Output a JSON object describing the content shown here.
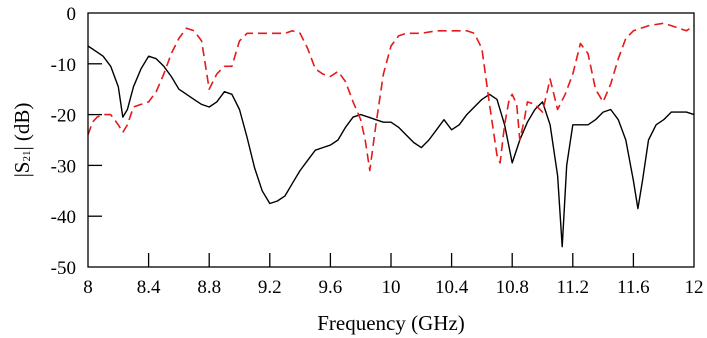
{
  "chart_data": {
    "type": "line",
    "title": "",
    "xlabel": "Frequency (GHz)",
    "ylabel": {
      "prefix": "|S",
      "sub": "21",
      "suffix": "| (dB)"
    },
    "xlim": [
      8,
      12
    ],
    "ylim": [
      -50,
      0
    ],
    "xticks": [
      "8",
      "8.4",
      "8.8",
      "9.2",
      "9.6",
      "10",
      "10.4",
      "10.8",
      "11.2",
      "11.6",
      "12"
    ],
    "yticks": [
      "0",
      "-10",
      "-20",
      "-30",
      "-40",
      "-50"
    ],
    "grid": false,
    "series": [
      {
        "style": "solid",
        "color": "#000000",
        "x": [
          8.0,
          8.05,
          8.1,
          8.15,
          8.2,
          8.23,
          8.26,
          8.3,
          8.35,
          8.4,
          8.45,
          8.5,
          8.55,
          8.6,
          8.65,
          8.7,
          8.75,
          8.8,
          8.85,
          8.9,
          8.95,
          9.0,
          9.05,
          9.1,
          9.15,
          9.2,
          9.25,
          9.3,
          9.35,
          9.4,
          9.45,
          9.5,
          9.55,
          9.6,
          9.65,
          9.7,
          9.75,
          9.8,
          9.85,
          9.9,
          9.95,
          10.0,
          10.05,
          10.1,
          10.15,
          10.2,
          10.25,
          10.3,
          10.35,
          10.4,
          10.45,
          10.5,
          10.55,
          10.6,
          10.65,
          10.7,
          10.75,
          10.8,
          10.85,
          10.9,
          10.95,
          11.0,
          11.05,
          11.1,
          11.13,
          11.16,
          11.2,
          11.25,
          11.3,
          11.35,
          11.4,
          11.45,
          11.5,
          11.55,
          11.6,
          11.63,
          11.66,
          11.7,
          11.75,
          11.8,
          11.85,
          11.9,
          11.95,
          12.0
        ],
        "y": [
          -6.5,
          -7.5,
          -8.5,
          -10.5,
          -14.5,
          -20.5,
          -19,
          -14.5,
          -11,
          -8.5,
          -9,
          -10.5,
          -12.5,
          -15,
          -16,
          -17,
          -18,
          -18.5,
          -17.5,
          -15.5,
          -16,
          -19,
          -24.5,
          -30.5,
          -35,
          -37.5,
          -37,
          -36,
          -33.5,
          -31,
          -29,
          -27,
          -26.5,
          -26,
          -25,
          -22.5,
          -20.5,
          -20,
          -20.5,
          -21,
          -21.5,
          -21.5,
          -22.5,
          -24,
          -25.5,
          -26.5,
          -25,
          -23,
          -21,
          -23,
          -22,
          -20,
          -18.5,
          -17,
          -16,
          -17,
          -22,
          -29.5,
          -25,
          -21.5,
          -19,
          -17.5,
          -22,
          -32,
          -46,
          -30,
          -22,
          -22,
          -22,
          -21,
          -19.5,
          -19,
          -21,
          -25,
          -33,
          -38.5,
          -33,
          -25,
          -22,
          -21,
          -19.5,
          -19.5,
          -19.5,
          -20
        ]
      },
      {
        "style": "dashed",
        "color": "#e41a1c",
        "x": [
          8.0,
          8.03,
          8.06,
          8.1,
          8.15,
          8.2,
          8.23,
          8.26,
          8.3,
          8.35,
          8.4,
          8.45,
          8.5,
          8.55,
          8.6,
          8.65,
          8.7,
          8.75,
          8.8,
          8.85,
          8.9,
          8.95,
          9.0,
          9.05,
          9.1,
          9.2,
          9.3,
          9.35,
          9.4,
          9.45,
          9.5,
          9.55,
          9.6,
          9.65,
          9.7,
          9.75,
          9.8,
          9.83,
          9.86,
          9.9,
          9.95,
          10.0,
          10.05,
          10.1,
          10.2,
          10.3,
          10.4,
          10.5,
          10.55,
          10.6,
          10.65,
          10.7,
          10.72,
          10.75,
          10.78,
          10.8,
          10.83,
          10.85,
          10.88,
          10.9,
          10.95,
          11.0,
          11.05,
          11.1,
          11.15,
          11.2,
          11.25,
          11.3,
          11.35,
          11.4,
          11.45,
          11.5,
          11.55,
          11.6,
          11.7,
          11.8,
          11.9,
          11.95,
          12.0
        ],
        "y": [
          -24,
          -21.5,
          -20.5,
          -20,
          -20,
          -22,
          -23.5,
          -22,
          -18.5,
          -18,
          -17.5,
          -15.5,
          -12,
          -8,
          -5,
          -3,
          -3.5,
          -5.5,
          -15,
          -12,
          -10.5,
          -10.5,
          -5.5,
          -4,
          -4,
          -4,
          -4,
          -3.5,
          -4,
          -7,
          -11,
          -12,
          -12.5,
          -11.5,
          -13.5,
          -17.5,
          -21,
          -25,
          -31,
          -22,
          -12,
          -6.5,
          -4.5,
          -4,
          -4,
          -3.5,
          -3.5,
          -3.5,
          -4,
          -7,
          -18,
          -28,
          -29.5,
          -22,
          -17,
          -16,
          -18,
          -25,
          -21,
          -17.5,
          -18,
          -19.5,
          -13,
          -19,
          -16,
          -12,
          -6,
          -8,
          -15,
          -17.5,
          -14,
          -9,
          -5,
          -3.5,
          -2.5,
          -2,
          -3,
          -3.5,
          -2.5
        ]
      }
    ]
  }
}
